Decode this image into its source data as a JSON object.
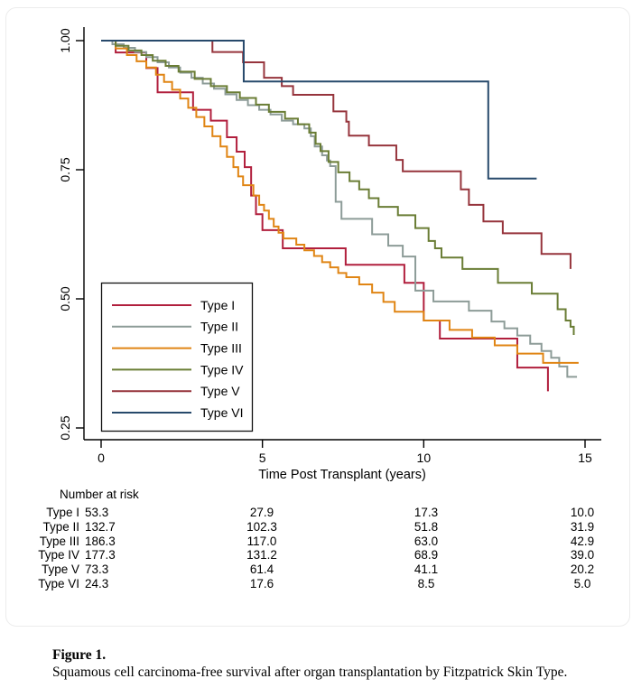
{
  "figure": {
    "caption_label": "Figure 1.",
    "caption_text": "Squamous cell carcinoma-free survival after organ transplantation by Fitzpatrick Skin Type."
  },
  "chart_data": {
    "type": "line",
    "subtype": "kaplan-meier-step-survival",
    "title": "",
    "xlabel": "Time Post Transplant (years)",
    "ylabel": "",
    "xlim": [
      0,
      15.5
    ],
    "ylim": [
      0.22,
      1.02
    ],
    "xticks": [
      0,
      5,
      10,
      15
    ],
    "yticks": [
      1.0,
      0.75,
      0.5,
      0.25
    ],
    "yticklabels": [
      "1.00",
      "0.75",
      "0.50",
      "0.25"
    ],
    "grid": "off",
    "legend_position": "inside-lower-left",
    "axis_color": "#000000",
    "series": [
      {
        "name": "Type I",
        "color": "#b11f3d",
        "end": 13.85,
        "terminal_drop": true,
        "steps": [
          [
            0.45,
            0.977
          ],
          [
            1.4,
            0.947
          ],
          [
            1.75,
            0.9
          ],
          [
            2.85,
            0.866
          ],
          [
            3.4,
            0.845
          ],
          [
            3.9,
            0.813
          ],
          [
            4.2,
            0.785
          ],
          [
            4.45,
            0.755
          ],
          [
            4.65,
            0.7
          ],
          [
            4.8,
            0.664
          ],
          [
            5.0,
            0.633
          ],
          [
            5.63,
            0.598
          ],
          [
            7.58,
            0.566
          ],
          [
            9.4,
            0.531
          ],
          [
            10.0,
            0.458
          ],
          [
            10.5,
            0.423
          ],
          [
            12.9,
            0.367
          ],
          [
            13.85,
            0.321
          ]
        ]
      },
      {
        "name": "Type II",
        "color": "#8d9c98",
        "end": 14.75,
        "terminal_drop": false,
        "steps": [
          [
            0.35,
            0.993
          ],
          [
            0.7,
            0.986
          ],
          [
            1.05,
            0.978
          ],
          [
            1.4,
            0.968
          ],
          [
            1.75,
            0.958
          ],
          [
            2.1,
            0.948
          ],
          [
            2.45,
            0.938
          ],
          [
            2.8,
            0.928
          ],
          [
            3.15,
            0.917
          ],
          [
            3.5,
            0.907
          ],
          [
            3.85,
            0.896
          ],
          [
            4.2,
            0.885
          ],
          [
            4.55,
            0.875
          ],
          [
            4.9,
            0.866
          ],
          [
            5.25,
            0.857
          ],
          [
            5.6,
            0.845
          ],
          [
            5.95,
            0.838
          ],
          [
            6.3,
            0.83
          ],
          [
            6.5,
            0.815
          ],
          [
            6.62,
            0.795
          ],
          [
            6.85,
            0.778
          ],
          [
            7.0,
            0.768
          ],
          [
            7.1,
            0.757
          ],
          [
            7.27,
            0.688
          ],
          [
            7.45,
            0.655
          ],
          [
            8.4,
            0.625
          ],
          [
            8.9,
            0.603
          ],
          [
            9.35,
            0.582
          ],
          [
            9.74,
            0.516
          ],
          [
            10.3,
            0.495
          ],
          [
            11.4,
            0.477
          ],
          [
            12.1,
            0.456
          ],
          [
            12.5,
            0.443
          ],
          [
            12.9,
            0.429
          ],
          [
            13.3,
            0.413
          ],
          [
            13.65,
            0.399
          ],
          [
            13.95,
            0.386
          ],
          [
            14.2,
            0.369
          ],
          [
            14.45,
            0.349
          ]
        ]
      },
      {
        "name": "Type III",
        "color": "#e08514",
        "end": 14.8,
        "terminal_drop": false,
        "steps": [
          [
            0.45,
            0.985
          ],
          [
            0.8,
            0.972
          ],
          [
            1.1,
            0.96
          ],
          [
            1.4,
            0.948
          ],
          [
            1.7,
            0.934
          ],
          [
            1.95,
            0.92
          ],
          [
            2.2,
            0.905
          ],
          [
            2.45,
            0.888
          ],
          [
            2.7,
            0.87
          ],
          [
            2.95,
            0.852
          ],
          [
            3.2,
            0.834
          ],
          [
            3.45,
            0.815
          ],
          [
            3.7,
            0.795
          ],
          [
            3.9,
            0.775
          ],
          [
            4.1,
            0.755
          ],
          [
            4.25,
            0.737
          ],
          [
            4.4,
            0.72
          ],
          [
            4.72,
            0.7
          ],
          [
            4.9,
            0.682
          ],
          [
            5.05,
            0.671
          ],
          [
            5.2,
            0.655
          ],
          [
            5.35,
            0.64
          ],
          [
            5.5,
            0.628
          ],
          [
            5.65,
            0.617
          ],
          [
            6.05,
            0.605
          ],
          [
            6.3,
            0.594
          ],
          [
            6.6,
            0.583
          ],
          [
            6.85,
            0.571
          ],
          [
            7.1,
            0.561
          ],
          [
            7.35,
            0.55
          ],
          [
            7.6,
            0.542
          ],
          [
            8.0,
            0.528
          ],
          [
            8.4,
            0.512
          ],
          [
            8.75,
            0.494
          ],
          [
            9.1,
            0.475
          ],
          [
            10.0,
            0.458
          ],
          [
            10.8,
            0.44
          ],
          [
            11.5,
            0.425
          ],
          [
            12.2,
            0.41
          ],
          [
            12.9,
            0.394
          ],
          [
            13.7,
            0.376
          ]
        ]
      },
      {
        "name": "Type IV",
        "color": "#6a7d35",
        "end": 14.65,
        "terminal_drop": true,
        "steps": [
          [
            0.45,
            0.99
          ],
          [
            0.85,
            0.981
          ],
          [
            1.25,
            0.972
          ],
          [
            1.6,
            0.961
          ],
          [
            2.0,
            0.951
          ],
          [
            2.4,
            0.94
          ],
          [
            2.9,
            0.926
          ],
          [
            3.4,
            0.912
          ],
          [
            3.9,
            0.9
          ],
          [
            4.3,
            0.889
          ],
          [
            4.8,
            0.876
          ],
          [
            5.2,
            0.862
          ],
          [
            5.7,
            0.849
          ],
          [
            6.1,
            0.838
          ],
          [
            6.45,
            0.822
          ],
          [
            6.65,
            0.8
          ],
          [
            6.8,
            0.786
          ],
          [
            7.05,
            0.765
          ],
          [
            7.35,
            0.745
          ],
          [
            7.7,
            0.728
          ],
          [
            8.0,
            0.712
          ],
          [
            8.3,
            0.695
          ],
          [
            8.6,
            0.678
          ],
          [
            9.2,
            0.662
          ],
          [
            9.74,
            0.637
          ],
          [
            10.15,
            0.612
          ],
          [
            10.35,
            0.598
          ],
          [
            10.55,
            0.58
          ],
          [
            11.2,
            0.558
          ],
          [
            12.3,
            0.531
          ],
          [
            13.35,
            0.51
          ],
          [
            14.15,
            0.48
          ],
          [
            14.4,
            0.458
          ],
          [
            14.55,
            0.446
          ],
          [
            14.65,
            0.43
          ]
        ]
      },
      {
        "name": "Type V",
        "color": "#96343c",
        "end": 14.55,
        "terminal_drop": true,
        "steps": [
          [
            3.45,
            0.978
          ],
          [
            4.4,
            0.958
          ],
          [
            5.05,
            0.928
          ],
          [
            5.6,
            0.912
          ],
          [
            5.95,
            0.895
          ],
          [
            7.2,
            0.863
          ],
          [
            7.6,
            0.843
          ],
          [
            7.68,
            0.816
          ],
          [
            8.3,
            0.797
          ],
          [
            9.15,
            0.769
          ],
          [
            9.35,
            0.747
          ],
          [
            11.15,
            0.712
          ],
          [
            11.4,
            0.682
          ],
          [
            11.85,
            0.65
          ],
          [
            12.45,
            0.627
          ],
          [
            13.65,
            0.587
          ],
          [
            14.55,
            0.558
          ]
        ]
      },
      {
        "name": "Type VI",
        "color": "#27496b",
        "end": 13.5,
        "terminal_drop": false,
        "steps": [
          [
            4.42,
            0.921
          ],
          [
            12.0,
            0.733
          ]
        ]
      }
    ]
  },
  "risk_table": {
    "title": "Number at risk",
    "time_points": [
      0,
      5,
      10,
      15
    ],
    "rows": [
      {
        "label": "Type I",
        "values": [
          "53.3",
          "27.9",
          "17.3",
          "10.0"
        ]
      },
      {
        "label": "Type II",
        "values": [
          "132.7",
          "102.3",
          "51.8",
          "31.9"
        ]
      },
      {
        "label": "Type III",
        "values": [
          "186.3",
          "117.0",
          "63.0",
          "42.9"
        ]
      },
      {
        "label": "Type IV",
        "values": [
          "177.3",
          "131.2",
          "68.9",
          "39.0"
        ]
      },
      {
        "label": "Type V",
        "values": [
          "73.3",
          "61.4",
          "41.1",
          "20.2"
        ]
      },
      {
        "label": "Type VI",
        "values": [
          "24.3",
          "17.6",
          "8.5",
          "5.0"
        ]
      }
    ]
  }
}
